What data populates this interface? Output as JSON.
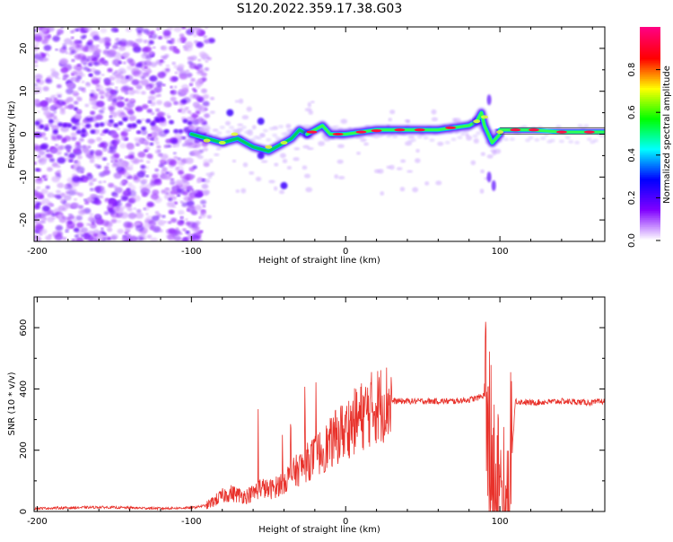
{
  "chart_data": [
    {
      "type": "heatmap",
      "title": "S120.2022.359.17.38.G03",
      "xlabel": "Height of straight line (km)",
      "ylabel": "Frequency (Hz)",
      "xlim": [
        -202,
        168
      ],
      "ylim": [
        -25,
        25
      ],
      "x_ticks": [
        -200,
        -100,
        0,
        100
      ],
      "x_tick_labels": [
        "-200",
        "-100",
        "0",
        "100"
      ],
      "y_ticks": [
        -20,
        -10,
        0,
        10,
        20
      ],
      "y_tick_labels": [
        "-20",
        "-10",
        "0",
        "10",
        "20"
      ],
      "trace_segments": [
        {
          "x": [
            -100,
            -90,
            -80,
            -70,
            -60,
            -50,
            -45,
            -40,
            -35,
            -30,
            -25
          ],
          "y": [
            0,
            -1,
            -2,
            -1,
            -3,
            -4,
            -3,
            -2,
            -1,
            1,
            0
          ]
        },
        {
          "x": [
            -25,
            -20,
            -15,
            -10,
            0,
            10,
            20,
            40,
            60,
            80,
            85
          ],
          "y": [
            0,
            1,
            2,
            0,
            0,
            0.5,
            1,
            1,
            1,
            2,
            3
          ]
        },
        {
          "x": [
            85,
            88,
            90,
            95,
            100
          ],
          "y": [
            3,
            5,
            2,
            -2,
            0
          ]
        },
        {
          "x": [
            100,
            120,
            140,
            168
          ],
          "y": [
            1,
            1,
            0.5,
            0.5
          ]
        }
      ],
      "colorbar": {
        "label": "Normalized spectral amplitude",
        "ticks": [
          0.0,
          0.2,
          0.4,
          0.6,
          0.8
        ],
        "tick_labels": [
          "0.0",
          "0.2",
          "0.4",
          "0.6",
          "0.8"
        ],
        "range": [
          0,
          1
        ]
      },
      "colors": {
        "noise": "#9b30ff",
        "trace_low": "#4400ff",
        "trace_mid": "#00d060",
        "trace_high": "#ff1040",
        "colorbar_stops": [
          "#ffffff",
          "#8000ff",
          "#0000ff",
          "#00ffff",
          "#00ff00",
          "#ffff00",
          "#ff0000",
          "#ff0080"
        ]
      }
    },
    {
      "type": "line",
      "xlabel": "Height of straight line (km)",
      "ylabel": "SNR (10 * v/v)",
      "xlim": [
        -202,
        168
      ],
      "ylim": [
        0,
        700
      ],
      "x_ticks": [
        -200,
        -100,
        0,
        100
      ],
      "x_tick_labels": [
        "-200",
        "-100",
        "0",
        "100"
      ],
      "y_ticks": [
        0,
        200,
        400,
        600
      ],
      "y_tick_labels": [
        "0",
        "200",
        "400",
        "600"
      ],
      "series": [
        {
          "name": "SNR",
          "color": "#e8312a",
          "x": [
            -202,
            -180,
            -160,
            -140,
            -120,
            -100,
            -90,
            -85,
            -80,
            -75,
            -70,
            -65,
            -60,
            -55,
            -50,
            -45,
            -40,
            -35,
            -30,
            -25,
            -20,
            -15,
            -10,
            -5,
            0,
            5,
            10,
            15,
            20,
            25,
            30,
            40,
            50,
            60,
            70,
            80,
            85,
            90,
            93,
            95,
            98,
            100,
            102,
            105,
            108,
            110,
            120,
            140,
            160,
            168
          ],
          "y": [
            10,
            12,
            14,
            12,
            10,
            12,
            20,
            35,
            50,
            60,
            55,
            50,
            60,
            80,
            70,
            80,
            100,
            120,
            140,
            160,
            180,
            200,
            220,
            250,
            270,
            290,
            310,
            330,
            345,
            355,
            360,
            360,
            360,
            360,
            360,
            365,
            370,
            380,
            250,
            150,
            60,
            40,
            50,
            70,
            200,
            360,
            355,
            360,
            355,
            360
          ]
        }
      ]
    }
  ]
}
